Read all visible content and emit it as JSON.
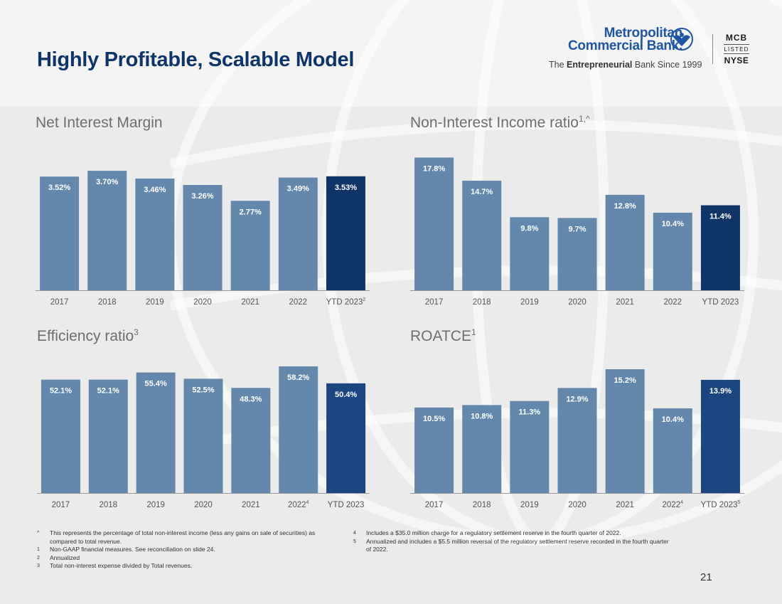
{
  "page": {
    "title": "Highly Profitable, Scalable Model",
    "page_number": "21"
  },
  "logo": {
    "name_line1": "Metropolitan",
    "name_line2": "Commercial Bank.",
    "tagline_pre": "The ",
    "tagline_bold": "Entrepreneurial",
    "tagline_post": " Bank Since 1999",
    "ticker": "MCB",
    "listed": "LISTED",
    "exchange": "NYSE"
  },
  "colors": {
    "bar_historic": "#6488ac",
    "bar_ytd_dark": "#0f3568",
    "bar_ytd_mid": "#1d4680",
    "axis": "#999999",
    "title": "#0f3568",
    "chart_title": "#6e6e6e"
  },
  "chart_data": [
    {
      "type": "bar",
      "title": "Net Interest Margin",
      "title_sup": "",
      "categories": [
        "2017",
        "2018",
        "2019",
        "2020",
        "2021",
        "2022",
        "YTD 2023"
      ],
      "category_sups": [
        "",
        "",
        "",
        "",
        "",
        "",
        "2"
      ],
      "values": [
        3.52,
        3.7,
        3.46,
        3.26,
        2.77,
        3.49,
        3.53
      ],
      "labels": [
        "3.52%",
        "3.70%",
        "3.46%",
        "3.26%",
        "2.77%",
        "3.49%",
        "3.53%"
      ],
      "highlight_color": "#0f3568",
      "ylim": [
        0,
        3.9
      ]
    },
    {
      "type": "bar",
      "title": "Non-Interest Income ratio",
      "title_sup": "1,^",
      "categories": [
        "2017",
        "2018",
        "2019",
        "2020",
        "2021",
        "2022",
        "YTD 2023"
      ],
      "category_sups": [
        "",
        "",
        "",
        "",
        "",
        "",
        ""
      ],
      "values": [
        17.8,
        14.7,
        9.8,
        9.7,
        12.8,
        10.4,
        11.4
      ],
      "labels": [
        "17.8%",
        "14.7%",
        "9.8%",
        "9.7%",
        "12.8%",
        "10.4%",
        "11.4%"
      ],
      "highlight_color": "#0f3568",
      "ylim": [
        0,
        18.8
      ]
    },
    {
      "type": "bar",
      "title": "Efficiency ratio",
      "title_sup": "3",
      "categories": [
        "2017",
        "2018",
        "2019",
        "2020",
        "2021",
        "2022",
        "YTD 2023"
      ],
      "category_sups": [
        "",
        "",
        "",
        "",
        "",
        "4",
        ""
      ],
      "values": [
        52.1,
        52.1,
        55.4,
        52.5,
        48.3,
        58.2,
        50.4
      ],
      "labels": [
        "52.1%",
        "52.1%",
        "55.4%",
        "52.5%",
        "48.3%",
        "58.2%",
        "50.4%"
      ],
      "highlight_color": "#1d4680",
      "ylim": [
        0,
        59.5
      ]
    },
    {
      "type": "bar",
      "title": "ROATCE",
      "title_sup": "1",
      "categories": [
        "2017",
        "2018",
        "2019",
        "2020",
        "2021",
        "2022",
        "YTD 2023"
      ],
      "category_sups": [
        "",
        "",
        "",
        "",
        "",
        "4",
        "5"
      ],
      "values": [
        10.5,
        10.8,
        11.3,
        12.9,
        15.2,
        10.4,
        13.9
      ],
      "labels": [
        "10.5%",
        "10.8%",
        "11.3%",
        "12.9%",
        "15.2%",
        "10.4%",
        "13.9%"
      ],
      "highlight_color": "#1d4680",
      "ylim": [
        0,
        15.9
      ]
    }
  ],
  "footnotes_left": [
    {
      "mark": "^",
      "text": "This represents the percentage of total non-interest income (less any gains on sale of securities) as compared to total revenue."
    },
    {
      "mark": "1",
      "text": "Non-GAAP financial measures. See reconciliation on slide 24."
    },
    {
      "mark": "2",
      "text": "Annualized"
    },
    {
      "mark": "3",
      "text": "Total non-interest expense divided by Total revenues."
    }
  ],
  "footnotes_right": [
    {
      "mark": "4",
      "text": "Includes a $35.0 million charge for a regulatory settlement reserve in the fourth quarter of 2022."
    },
    {
      "mark": "5",
      "text": "Annualized and includes a $5.5 million reversal of the regulatory settlement reserve recorded in the fourth quarter of 2022."
    }
  ]
}
